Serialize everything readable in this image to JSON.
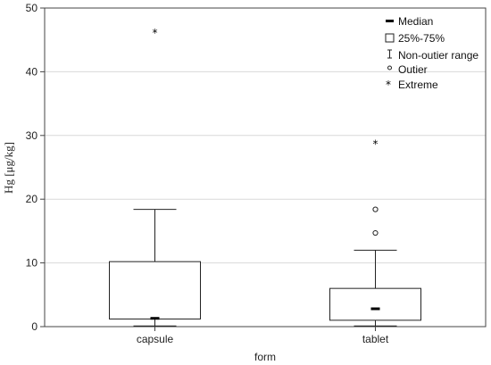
{
  "chart_data": {
    "type": "boxplot",
    "xlabel": "form",
    "ylabel": "Hg [μg/kg]",
    "ylim": [
      0,
      50
    ],
    "yticks": [
      0,
      10,
      20,
      30,
      40,
      50
    ],
    "grid": true,
    "legend_position": "top-right",
    "categories": [
      "capsule",
      "tablet"
    ],
    "boxes": [
      {
        "category": "capsule",
        "median": 1.3,
        "q1": 1.2,
        "q3": 10.2,
        "whisker_low": 0.1,
        "whisker_high": 18.4,
        "outliers": [],
        "extremes": [
          46.2
        ]
      },
      {
        "category": "tablet",
        "median": 2.8,
        "q1": 1.0,
        "q3": 6.0,
        "whisker_low": 0.1,
        "whisker_high": 12.0,
        "outliers": [
          14.7,
          18.4
        ],
        "extremes": [
          28.8
        ]
      }
    ],
    "legend": {
      "median": "Median",
      "box": "25%-75%",
      "range": "Non-outier range",
      "outlier": "Outier",
      "extreme": "Extreme"
    }
  }
}
